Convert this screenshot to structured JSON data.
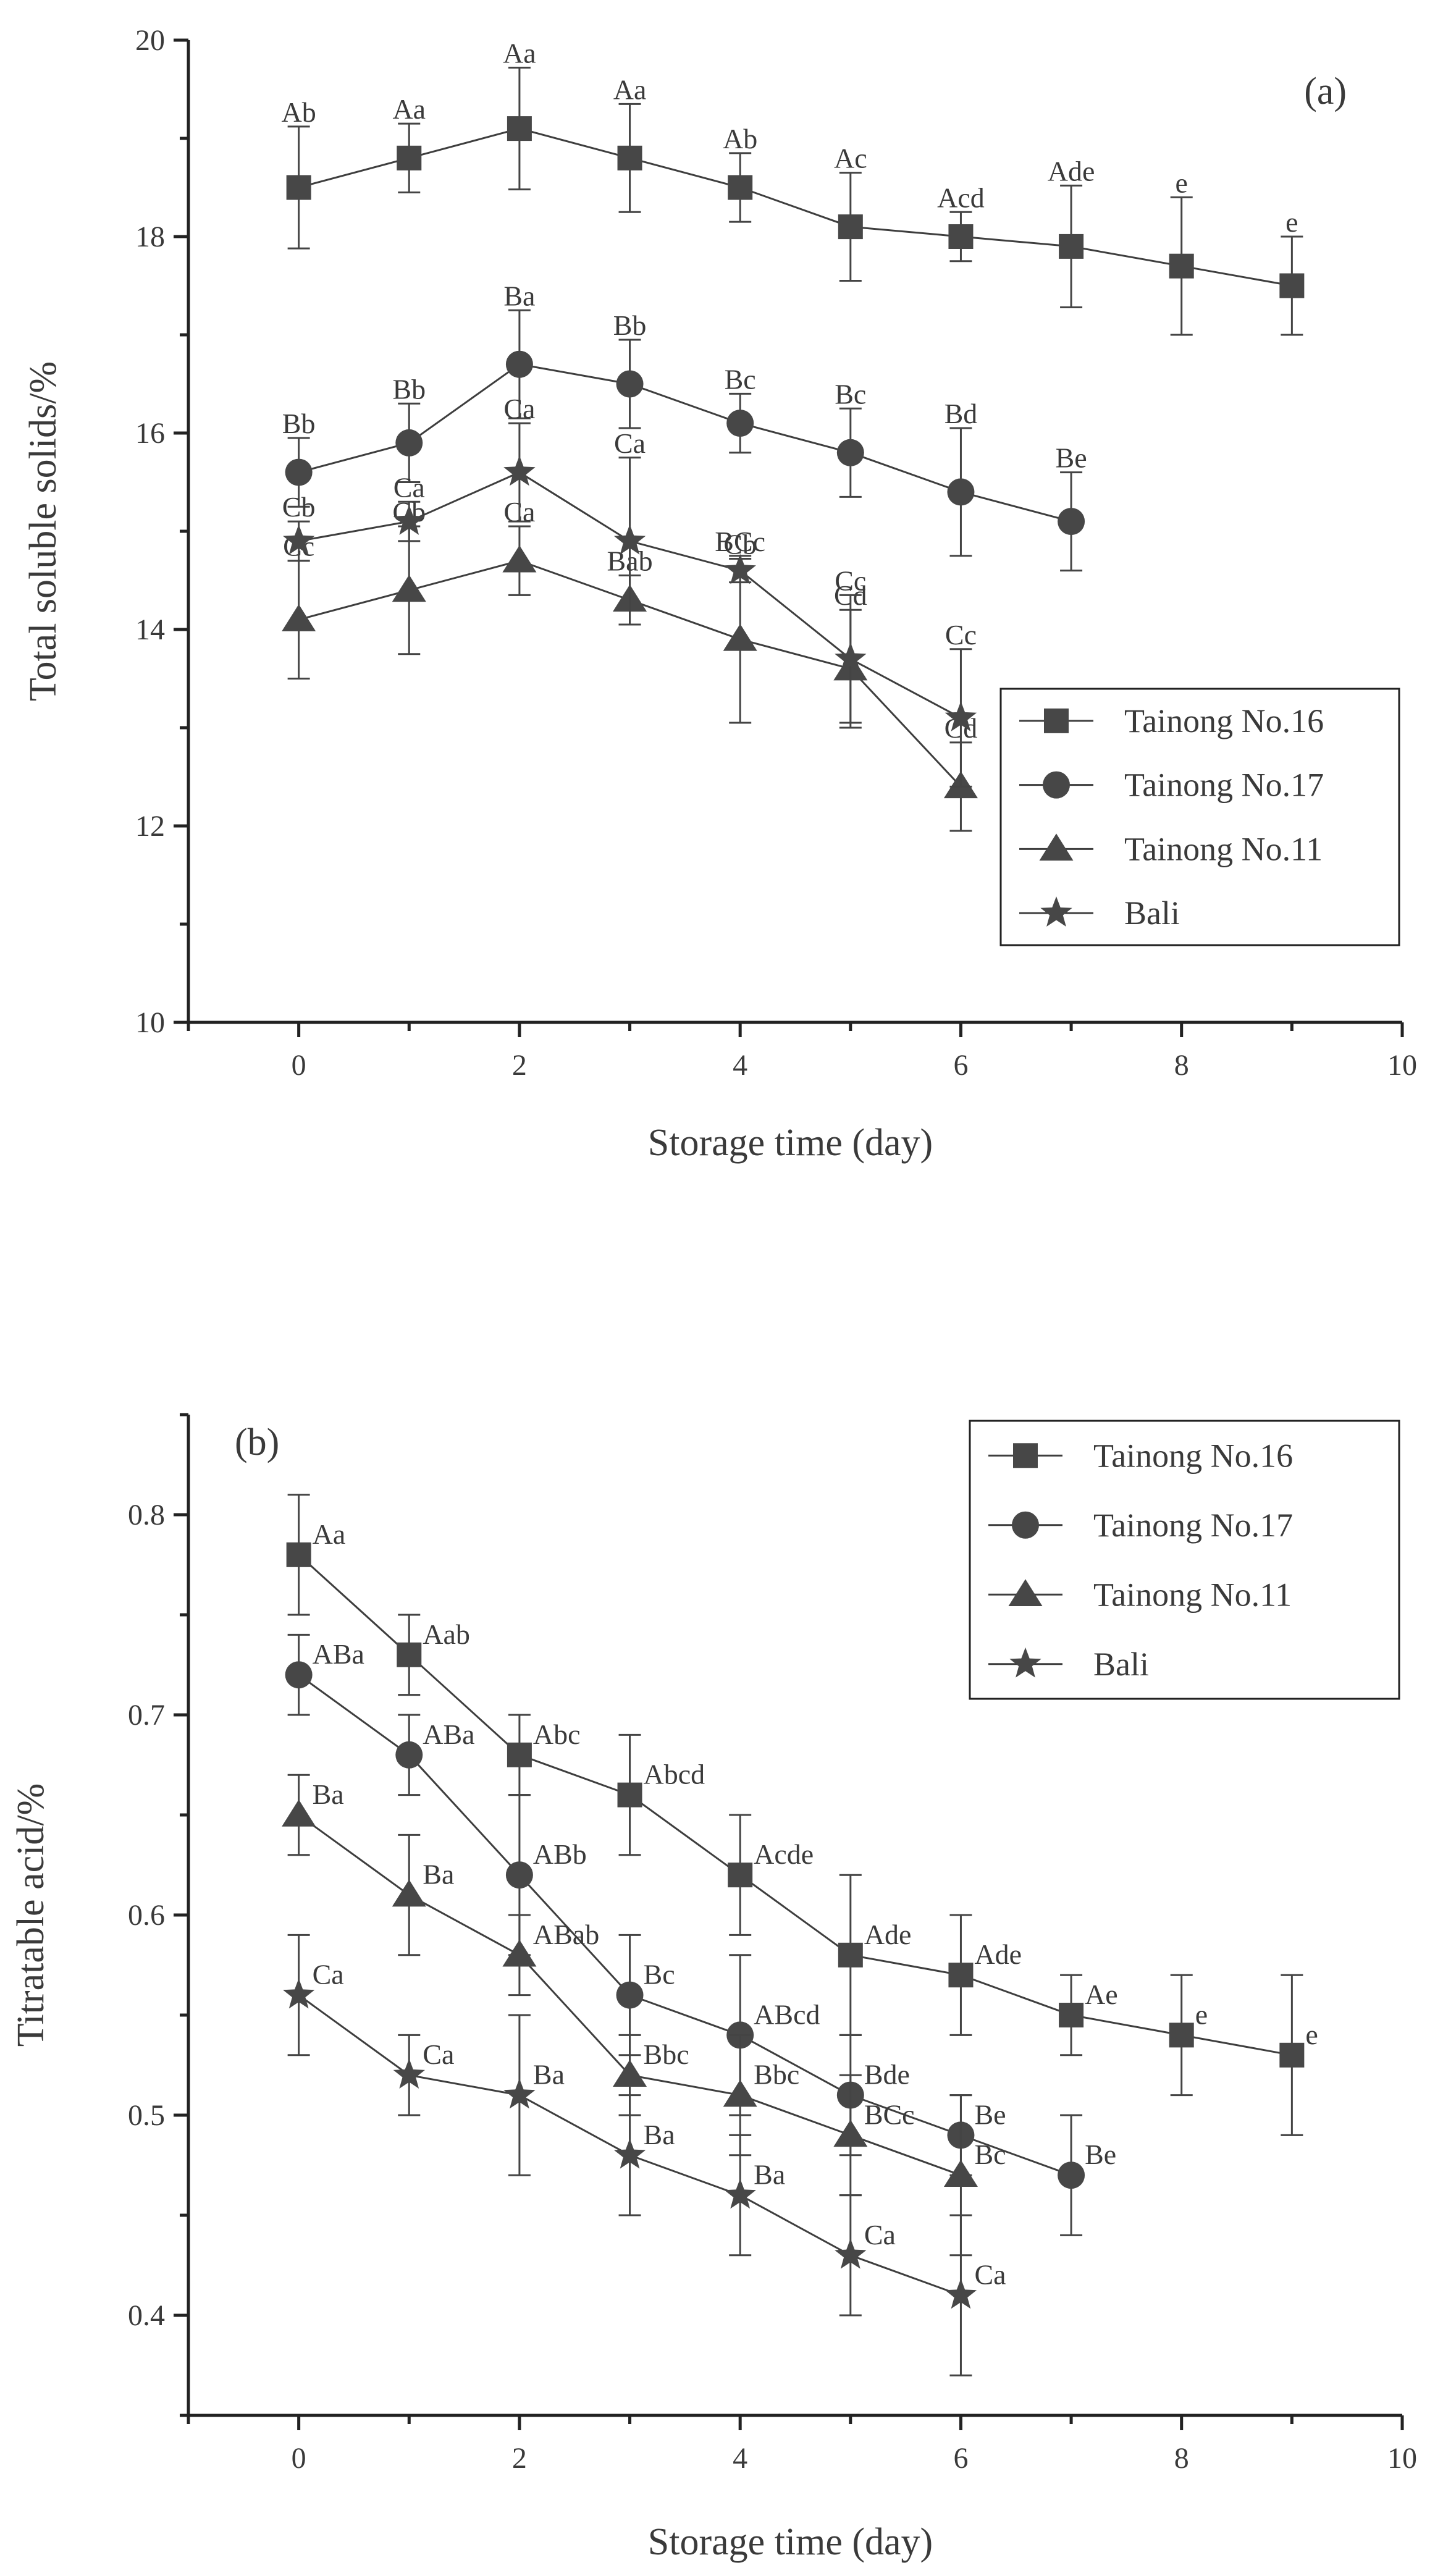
{
  "chart_data": [
    {
      "type": "line",
      "panel_label": "(a)",
      "title": "",
      "xlabel": "Storage time (day)",
      "ylabel": "Total soluble solids/%",
      "xlim": [
        -1,
        10
      ],
      "ylim": [
        10,
        20
      ],
      "xticks": [
        0,
        2,
        4,
        6,
        8,
        10
      ],
      "yticks": [
        10,
        12,
        14,
        16,
        18,
        20
      ],
      "legend_position": "bottom-right",
      "grid": false,
      "series": [
        {
          "name": "Tainong No.16",
          "marker": "square",
          "x": [
            0,
            1,
            2,
            3,
            4,
            5,
            6,
            7,
            8,
            9
          ],
          "y": [
            18.5,
            18.8,
            19.1,
            18.8,
            18.5,
            18.1,
            18.0,
            17.9,
            17.7,
            17.5
          ],
          "err": [
            0.62,
            0.35,
            0.62,
            0.55,
            0.35,
            0.55,
            0.25,
            0.62,
            0.7,
            0.5
          ],
          "labels": [
            "Ab",
            "Aa",
            "Aa",
            "Aa",
            "Ab",
            "Ac",
            "Acd",
            "Ade",
            "e",
            "e"
          ]
        },
        {
          "name": "Tainong No.17",
          "marker": "circle",
          "x": [
            0,
            1,
            2,
            3,
            4,
            5,
            6,
            7
          ],
          "y": [
            15.6,
            15.9,
            16.7,
            16.5,
            16.1,
            15.8,
            15.4,
            15.1
          ],
          "err": [
            0.35,
            0.4,
            0.55,
            0.45,
            0.3,
            0.45,
            0.65,
            0.5
          ],
          "labels": [
            "Bb",
            "Bb",
            "Ba",
            "Bb",
            "Bc",
            "Bc",
            "Bd",
            "Be"
          ]
        },
        {
          "name": "Tainong No.11",
          "marker": "triangle",
          "x": [
            0,
            1,
            2,
            3,
            4,
            5,
            6
          ],
          "y": [
            14.1,
            14.4,
            14.7,
            14.3,
            13.9,
            13.6,
            12.4
          ],
          "err": [
            0.6,
            0.65,
            0.35,
            0.25,
            0.85,
            0.6,
            0.45
          ],
          "labels": [
            "Cc",
            "Cb",
            "Ca",
            "Bab",
            "BCc",
            "Cd",
            "Cd"
          ]
        },
        {
          "name": "Bali",
          "marker": "star",
          "x": [
            0,
            1,
            2,
            3,
            4,
            5,
            6
          ],
          "y": [
            14.9,
            15.1,
            15.6,
            14.9,
            14.6,
            13.7,
            13.1
          ],
          "err": [
            0.2,
            0.2,
            0.5,
            0.85,
            0.12,
            0.65,
            0.7
          ],
          "labels": [
            "Cb",
            "Ca",
            "Ca",
            "Ca",
            "Cb",
            "Cc",
            "Cc"
          ]
        }
      ]
    },
    {
      "type": "line",
      "panel_label": "(b)",
      "title": "",
      "xlabel": "Storage time (day)",
      "ylabel": "Titratable acid/%",
      "xlim": [
        -1,
        10
      ],
      "ylim": [
        0.35,
        0.85
      ],
      "xticks": [
        0,
        2,
        4,
        6,
        8,
        10
      ],
      "yticks": [
        0.4,
        0.5,
        0.6,
        0.7,
        0.8
      ],
      "legend_position": "top-right",
      "grid": false,
      "series": [
        {
          "name": "Tainong No.16",
          "marker": "square",
          "x": [
            0,
            1,
            2,
            3,
            4,
            5,
            6,
            7,
            8,
            9
          ],
          "y": [
            0.78,
            0.73,
            0.68,
            0.66,
            0.62,
            0.58,
            0.57,
            0.55,
            0.54,
            0.53
          ],
          "err": [
            0.03,
            0.02,
            0.02,
            0.03,
            0.03,
            0.04,
            0.03,
            0.02,
            0.03,
            0.04
          ],
          "labels": [
            "Aa",
            "Aab",
            "Abc",
            "Abcd",
            "Acde",
            "Ade",
            "Ade",
            "Ae",
            "e",
            "e"
          ]
        },
        {
          "name": "Tainong No.17",
          "marker": "circle",
          "x": [
            0,
            1,
            2,
            3,
            4,
            5,
            6,
            7
          ],
          "y": [
            0.72,
            0.68,
            0.62,
            0.56,
            0.54,
            0.51,
            0.49,
            0.47
          ],
          "err": [
            0.02,
            0.02,
            0.04,
            0.03,
            0.04,
            0.03,
            0.02,
            0.03
          ],
          "labels": [
            "ABa",
            "ABa",
            "ABb",
            "Bc",
            "ABcd",
            "Bde",
            "Be",
            "Be"
          ]
        },
        {
          "name": "Tainong No.11",
          "marker": "triangle",
          "x": [
            0,
            1,
            2,
            3,
            4,
            5,
            6
          ],
          "y": [
            0.65,
            0.61,
            0.58,
            0.52,
            0.51,
            0.49,
            0.47
          ],
          "err": [
            0.02,
            0.03,
            0.02,
            0.02,
            0.03,
            0.03,
            0.04
          ],
          "labels": [
            "Ba",
            "Ba",
            "ABab",
            "Bbc",
            "Bbc",
            "BCc",
            "Bc"
          ]
        },
        {
          "name": "Bali",
          "marker": "star",
          "x": [
            0,
            1,
            2,
            3,
            4,
            5,
            6
          ],
          "y": [
            0.56,
            0.52,
            0.51,
            0.48,
            0.46,
            0.43,
            0.41
          ],
          "err": [
            0.03,
            0.02,
            0.04,
            0.03,
            0.03,
            0.03,
            0.04
          ],
          "labels": [
            "Ca",
            "Ca",
            "Ba",
            "Ba",
            "Ba",
            "Ca",
            "Ca"
          ]
        }
      ]
    }
  ]
}
